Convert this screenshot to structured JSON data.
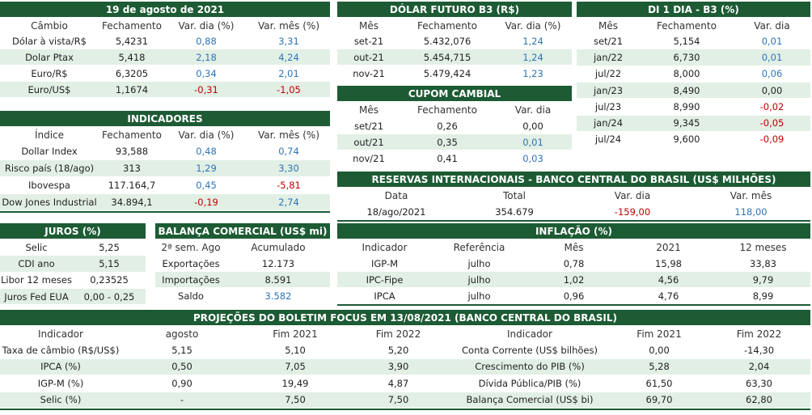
{
  "tables": [
    {
      "title": "19 de agosto de 2021",
      "header": [
        "Câmbio",
        "Fechamento",
        "Var. dia (%)",
        "Var. mês (%)"
      ],
      "rows": [
        [
          "Dólar à vista/R$",
          "5,4231",
          "0,88",
          "3,31"
        ],
        [
          "Dolar Ptax",
          "5,418",
          "2,18",
          "4,24"
        ],
        [
          "Euro/R$",
          "6,3205",
          "0,34",
          "2,01"
        ],
        [
          "Euro/US$",
          "1,1674",
          "-0,31",
          "-1,05"
        ]
      ]
    },
    {
      "title": "INDICADORES",
      "header": [
        "Índice",
        "Fechamento",
        "Var. dia (%)",
        "Var. mês (%)"
      ],
      "rows": [
        [
          "Dollar Index",
          "93,588",
          "0,48",
          "0,74"
        ],
        [
          "Risco país (18/ago)",
          "313",
          "1,29",
          "3,30"
        ],
        [
          "Ibovespa",
          "117.164,7",
          "0,45",
          "-5,81"
        ],
        [
          "Dow Jones Industrial",
          "34.894,1",
          "-0,19",
          "2,74"
        ]
      ]
    },
    {
      "title": "DÓLAR FUTURO B3 (R$)",
      "header": [
        "Mês",
        "Fechamento",
        "Var. dia (%)"
      ],
      "rows": [
        [
          "set-21",
          "5.432,076",
          "1,24"
        ],
        [
          "out-21",
          "5.454,715",
          "1,24"
        ],
        [
          "nov-21",
          "5.479,424",
          "1,23"
        ]
      ]
    },
    {
      "title": "CUPOM CAMBIAL",
      "header": [
        "Mês",
        "Fechamento",
        "Var. dia"
      ],
      "rows": [
        [
          "set/21",
          "0,26",
          "0,00"
        ],
        [
          "out/21",
          "0,35",
          "0,01"
        ],
        [
          "nov/21",
          "0,41",
          "0,03"
        ]
      ]
    },
    {
      "title": "DI 1 DIA - B3 (%)",
      "header": [
        "Mês",
        "Fechamento",
        "Var. dia"
      ],
      "rows": [
        [
          "set/21",
          "5,154",
          "0,01"
        ],
        [
          "jan/22",
          "6,730",
          "0,01"
        ],
        [
          "jul/22",
          "8,000",
          "0,06"
        ],
        [
          "jan/23",
          "8,490",
          "0,00"
        ],
        [
          "jul/23",
          "8,990",
          "-0,02"
        ],
        [
          "jan/24",
          "9,345",
          "-0,05"
        ],
        [
          "jul/24",
          "9,600",
          "-0,09"
        ]
      ]
    },
    {
      "title": "RESERVAS INTERNACIONAIS - BANCO CENTRAL DO BRASIL (US$ MILHÕES)",
      "header": [
        "Data",
        "Total",
        "Var. dia",
        "Var. mês"
      ],
      "rows": [
        [
          "18/ago/2021",
          "354.679",
          "-159,00",
          "118,00"
        ]
      ]
    },
    {
      "title": "JUROS (%)",
      "rows": [
        [
          "Selic",
          "5,25"
        ],
        [
          "CDI ano",
          "5,15"
        ],
        [
          "Libor 12 meses",
          "0,23525"
        ],
        [
          "Juros Fed EUA",
          "0,00 - 0,25"
        ]
      ]
    },
    {
      "title": "BALANÇA COMERCIAL (US$ mi)",
      "header": [
        "2ª sem. Ago",
        "Acumulado"
      ],
      "rows": [
        [
          "Exportações",
          "12.173"
        ],
        [
          "Importações",
          "8.591"
        ],
        [
          "Saldo",
          "3.582"
        ]
      ]
    },
    {
      "title": "INFLAÇÃO (%)",
      "header": [
        "Indicador",
        "Referência",
        "Mês",
        "2021",
        "12 meses"
      ],
      "rows": [
        [
          "IGP-M",
          "julho",
          "0,78",
          "15,98",
          "33,83"
        ],
        [
          "IPC-Fipe",
          "julho",
          "1,02",
          "4,56",
          "9,79"
        ],
        [
          "IPCA",
          "julho",
          "0,96",
          "4,76",
          "8,99"
        ]
      ]
    },
    {
      "title": "PROJEÇÕES DO BOLETIM FOCUS EM 13/08/2021 (BANCO CENTRAL DO BRASIL)",
      "header": [
        "Indicador",
        "agosto",
        "Fim 2021",
        "Fim 2022",
        "Indicador",
        "Fim 2021",
        "Fim 2022"
      ],
      "rows": [
        [
          "Taxa de câmbio (R$/US$)",
          "5,15",
          "5,10",
          "5,20",
          "Conta Corrente (US$ bilhões)",
          "0,00",
          "-14,30"
        ],
        [
          "IPCA (%)",
          "0,50",
          "7,05",
          "3,90",
          "Crescimento do PIB (%)",
          "5,28",
          "2,04"
        ],
        [
          "IGP-M (%)",
          "0,90",
          "19,49",
          "4,87",
          "Dívida Pública/PIB (%)",
          "61,50",
          "63,30"
        ],
        [
          "Selic (%)",
          "-",
          "7,50",
          "7,50",
          "Balança Comercial (US$ bi)",
          "69,70",
          "62,80"
        ]
      ]
    }
  ]
}
